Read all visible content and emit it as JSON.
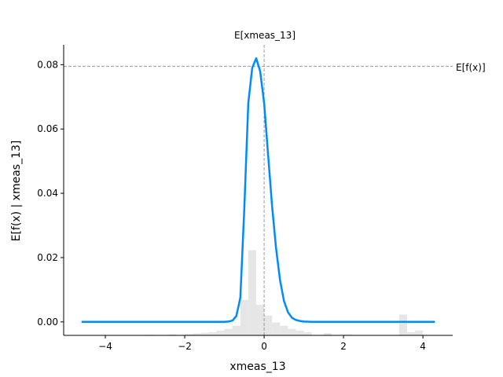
{
  "chart_data": {
    "type": "line",
    "xlabel": "xmeas_13",
    "ylabel": "E[f(x) | xmeas_13]",
    "xlim": [
      -5.05,
      4.75
    ],
    "ylim": [
      -0.0042,
      0.0862
    ],
    "x_ticks": [
      -4,
      -2,
      0,
      2,
      4
    ],
    "x_tick_labels": [
      "−4",
      "−2",
      "0",
      "2",
      "4"
    ],
    "y_ticks": [
      0.0,
      0.02,
      0.04,
      0.06,
      0.08
    ],
    "y_tick_labels": [
      "0.00",
      "0.02",
      "0.04",
      "0.06",
      "0.08"
    ],
    "expected_value": {
      "x_label": "E[xmeas_13]",
      "x_value": 0.0,
      "y_label": "E[f(x)]",
      "y_value": 0.0795
    },
    "line_color": "#008bfb",
    "hist_color": "#e6e6e6",
    "ref_line_color": "#999999",
    "series": [
      {
        "x": [
          -4.6,
          -3.0,
          -1.5,
          -1.0,
          -0.9,
          -0.8,
          -0.7,
          -0.6,
          -0.5,
          -0.4,
          -0.3,
          -0.2,
          -0.1,
          0.0,
          0.1,
          0.2,
          0.3,
          0.4,
          0.5,
          0.6,
          0.7,
          0.8,
          0.9,
          1.0,
          1.2,
          1.5,
          2.0,
          3.0,
          4.3
        ],
        "y": [
          0.0,
          0.0,
          0.0,
          0.0,
          0.0001,
          0.0004,
          0.0018,
          0.0075,
          0.035,
          0.068,
          0.079,
          0.082,
          0.078,
          0.068,
          0.052,
          0.036,
          0.023,
          0.013,
          0.0065,
          0.003,
          0.0013,
          0.0006,
          0.0003,
          0.0001,
          0.0,
          0.0,
          0.0,
          0.0,
          0.0
        ]
      }
    ],
    "histogram": {
      "bin_left": [
        -3.0,
        -2.4,
        -2.0,
        -1.8,
        -1.6,
        -1.4,
        -1.2,
        -1.0,
        -0.8,
        -0.6,
        -0.4,
        -0.2,
        0.0,
        0.2,
        0.4,
        0.6,
        0.8,
        1.0,
        1.5,
        2.0,
        3.4,
        3.6,
        3.8
      ],
      "bin_width": 0.2,
      "heights": [
        0.0002,
        0.0003,
        0.0004,
        0.0006,
        0.0008,
        0.001,
        0.0015,
        0.002,
        0.003,
        0.011,
        0.0265,
        0.0095,
        0.0062,
        0.004,
        0.003,
        0.002,
        0.0015,
        0.001,
        0.0007,
        0.0003,
        0.0065,
        0.001,
        0.0015
      ]
    }
  }
}
